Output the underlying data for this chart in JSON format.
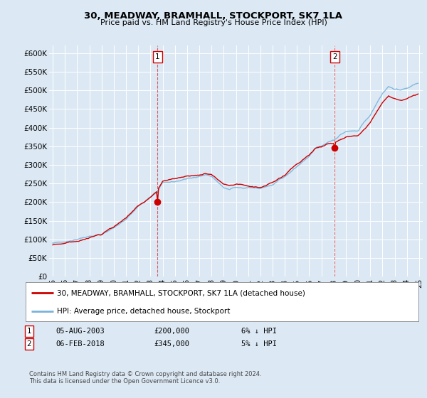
{
  "title": "30, MEADWAY, BRAMHALL, STOCKPORT, SK7 1LA",
  "subtitle": "Price paid vs. HM Land Registry's House Price Index (HPI)",
  "ylabel_ticks": [
    "£0",
    "£50K",
    "£100K",
    "£150K",
    "£200K",
    "£250K",
    "£300K",
    "£350K",
    "£400K",
    "£450K",
    "£500K",
    "£550K",
    "£600K"
  ],
  "ylim": [
    0,
    600000
  ],
  "ytick_values": [
    0,
    50000,
    100000,
    150000,
    200000,
    250000,
    300000,
    350000,
    400000,
    450000,
    500000,
    550000,
    600000
  ],
  "background_color": "#dce9f5",
  "grid_color": "#ffffff",
  "hpi_color": "#7ab3d9",
  "price_color": "#cc0000",
  "sale1_x": 2003.58,
  "sale1_price": 200000,
  "sale2_x": 2018.08,
  "sale2_price": 345000,
  "legend_label_price": "30, MEADWAY, BRAMHALL, STOCKPORT, SK7 1LA (detached house)",
  "legend_label_hpi": "HPI: Average price, detached house, Stockport",
  "table_row1": [
    "1",
    "05-AUG-2003",
    "£200,000",
    "6% ↓ HPI"
  ],
  "table_row2": [
    "2",
    "06-FEB-2018",
    "£345,000",
    "5% ↓ HPI"
  ],
  "footer": "Contains HM Land Registry data © Crown copyright and database right 2024.\nThis data is licensed under the Open Government Licence v3.0.",
  "xstart_year": 1995,
  "xend_year": 2025
}
